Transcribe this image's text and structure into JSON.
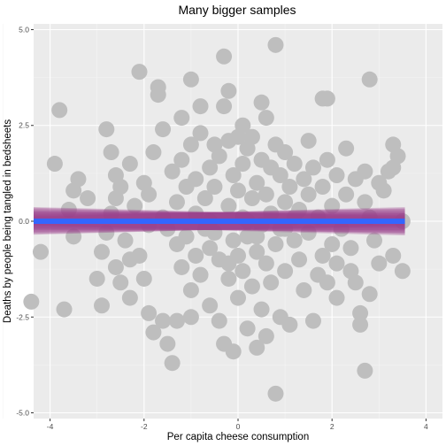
{
  "chart_data": {
    "type": "scatter",
    "title": "Many bigger samples",
    "xlabel": "Per capita cheese consumption",
    "ylabel": "Deaths by people being tangled in bedsheets",
    "xlim": [
      -4.35,
      4.35
    ],
    "ylim": [
      -5.15,
      5.15
    ],
    "x_ticks": [
      -4,
      -2,
      0,
      2,
      4
    ],
    "y_ticks": [
      -5.0,
      -2.5,
      0.0,
      2.5,
      5.0
    ],
    "y_tick_labels": [
      "-5.0",
      "-2.5",
      "0.0",
      "2.5",
      "5.0"
    ],
    "x_tick_labels": [
      "-4",
      "-2",
      "0",
      "2",
      "4"
    ],
    "grid": true,
    "colors": {
      "panel": "#ebebeb",
      "grid_major": "#ffffff",
      "points": "#bebebe",
      "ribbons": "#9b3f8c",
      "line": "#3366ff"
    },
    "points": [
      [
        -3.8,
        2.9
      ],
      [
        -4.4,
        -2.1
      ],
      [
        -4.2,
        -0.8
      ],
      [
        -3.7,
        -2.3
      ],
      [
        -3.9,
        1.5
      ],
      [
        -3.4,
        1.1
      ],
      [
        -3.5,
        0.8
      ],
      [
        -3.6,
        0.3
      ],
      [
        -3.5,
        -0.4
      ],
      [
        -3.2,
        0.6
      ],
      [
        -2.9,
        -2.2
      ],
      [
        -2.8,
        2.4
      ],
      [
        -2.7,
        1.8
      ],
      [
        -2.6,
        1.2
      ],
      [
        -2.5,
        0.9
      ],
      [
        -2.6,
        0.6
      ],
      [
        -2.7,
        0.2
      ],
      [
        -2.8,
        -0.3
      ],
      [
        -2.9,
        -0.8
      ],
      [
        -2.6,
        -1.2
      ],
      [
        -2.5,
        -1.6
      ],
      [
        -2.4,
        -0.5
      ],
      [
        -2.3,
        1.5
      ],
      [
        -2.2,
        0.4
      ],
      [
        -2.1,
        -0.9
      ],
      [
        -2.0,
        1.0
      ],
      [
        -2.0,
        -1.5
      ],
      [
        -1.9,
        0.7
      ],
      [
        -1.9,
        -0.1
      ],
      [
        -1.8,
        1.8
      ],
      [
        -2.1,
        3.9
      ],
      [
        -1.9,
        -2.4
      ],
      [
        -1.8,
        -2.9
      ],
      [
        -1.7,
        3.5
      ],
      [
        -1.7,
        3.3
      ],
      [
        -1.6,
        2.4
      ],
      [
        -1.6,
        -2.6
      ],
      [
        -1.5,
        -3.2
      ],
      [
        -1.4,
        -3.7
      ],
      [
        -1.3,
        -2.6
      ],
      [
        -1.4,
        1.3
      ],
      [
        -1.3,
        0.5
      ],
      [
        -1.3,
        -0.6
      ],
      [
        -1.2,
        1.6
      ],
      [
        -1.2,
        -1.2
      ],
      [
        -1.1,
        0.9
      ],
      [
        -1.1,
        -0.4
      ],
      [
        -1.0,
        3.7
      ],
      [
        -1.0,
        2.0
      ],
      [
        -1.0,
        -1.8
      ],
      [
        -0.9,
        1.1
      ],
      [
        -0.9,
        0.2
      ],
      [
        -0.9,
        -0.9
      ],
      [
        -0.8,
        2.3
      ],
      [
        -0.8,
        -1.4
      ],
      [
        -0.7,
        0.6
      ],
      [
        -0.7,
        -0.2
      ],
      [
        -0.6,
        1.4
      ],
      [
        -0.6,
        -2.2
      ],
      [
        -0.6,
        -0.7
      ],
      [
        -0.5,
        2.0
      ],
      [
        -0.5,
        0.9
      ],
      [
        -0.5,
        -0.3
      ],
      [
        -0.4,
        1.7
      ],
      [
        -0.4,
        -1.0
      ],
      [
        -0.4,
        -2.6
      ],
      [
        -0.3,
        4.3
      ],
      [
        -0.3,
        3.0
      ],
      [
        -0.3,
        -3.2
      ],
      [
        -0.2,
        3.4
      ],
      [
        -0.2,
        2.1
      ],
      [
        -0.2,
        0.4
      ],
      [
        -0.2,
        -1.5
      ],
      [
        -0.1,
        1.2
      ],
      [
        -0.1,
        -0.5
      ],
      [
        -0.1,
        -3.4
      ],
      [
        0.0,
        2.2
      ],
      [
        0.0,
        0.8
      ],
      [
        0.0,
        -0.9
      ],
      [
        0.0,
        -2.0
      ],
      [
        0.1,
        2.5
      ],
      [
        0.1,
        1.5
      ],
      [
        0.1,
        0.1
      ],
      [
        0.1,
        -1.3
      ],
      [
        0.2,
        1.9
      ],
      [
        0.2,
        -0.4
      ],
      [
        0.2,
        -2.8
      ],
      [
        0.3,
        2.2
      ],
      [
        0.3,
        0.6
      ],
      [
        0.3,
        -1.7
      ],
      [
        0.4,
        -3.3
      ],
      [
        0.4,
        1.0
      ],
      [
        0.4,
        -0.8
      ],
      [
        0.5,
        3.1
      ],
      [
        0.5,
        1.6
      ],
      [
        0.5,
        -0.1
      ],
      [
        0.5,
        -2.3
      ],
      [
        0.6,
        0.7
      ],
      [
        0.6,
        -1.1
      ],
      [
        0.6,
        -3.0
      ],
      [
        0.7,
        1.4
      ],
      [
        0.7,
        0.2
      ],
      [
        0.7,
        -1.6
      ],
      [
        0.8,
        4.6
      ],
      [
        0.8,
        2.0
      ],
      [
        0.8,
        -0.6
      ],
      [
        0.8,
        -4.5
      ],
      [
        0.9,
        1.2
      ],
      [
        0.9,
        -0.2
      ],
      [
        0.9,
        -2.5
      ],
      [
        1.0,
        1.8
      ],
      [
        1.0,
        0.5
      ],
      [
        1.0,
        -1.3
      ],
      [
        1.1,
        -2.7
      ],
      [
        1.1,
        0.9
      ],
      [
        1.2,
        1.5
      ],
      [
        1.2,
        -0.5
      ],
      [
        1.3,
        0.3
      ],
      [
        1.3,
        -1.0
      ],
      [
        1.4,
        1.1
      ],
      [
        1.4,
        -1.8
      ],
      [
        1.5,
        0.7
      ],
      [
        1.5,
        -0.3
      ],
      [
        1.6,
        -2.6
      ],
      [
        1.6,
        1.4
      ],
      [
        1.7,
        -1.4
      ],
      [
        1.7,
        0.1
      ],
      [
        1.8,
        3.2
      ],
      [
        1.8,
        0.9
      ],
      [
        1.8,
        -0.9
      ],
      [
        1.9,
        3.2
      ],
      [
        1.9,
        1.6
      ],
      [
        1.9,
        -1.6
      ],
      [
        2.0,
        0.4
      ],
      [
        2.0,
        -0.6
      ],
      [
        2.1,
        1.2
      ],
      [
        2.1,
        -1.1
      ],
      [
        2.2,
        -0.2
      ],
      [
        2.3,
        1.9
      ],
      [
        2.3,
        0.7
      ],
      [
        2.4,
        -1.3
      ],
      [
        2.4,
        -0.7
      ],
      [
        2.5,
        1.1
      ],
      [
        2.5,
        -1.6
      ],
      [
        2.6,
        -2.4
      ],
      [
        2.6,
        -2.7
      ],
      [
        2.7,
        1.3
      ],
      [
        2.7,
        0.5
      ],
      [
        2.7,
        -3.9
      ],
      [
        2.8,
        3.7
      ],
      [
        2.8,
        0.1
      ],
      [
        2.9,
        -0.5
      ],
      [
        3.0,
        1.0
      ],
      [
        3.0,
        -1.1
      ],
      [
        3.1,
        0.8
      ],
      [
        3.2,
        1.3
      ],
      [
        3.3,
        2.0
      ],
      [
        3.3,
        -0.9
      ],
      [
        3.4,
        1.7
      ],
      [
        3.5,
        -1.3
      ],
      [
        3.5,
        0.0
      ],
      [
        -1.5,
        -0.2
      ],
      [
        -1.0,
        -2.5
      ],
      [
        -0.2,
        -1.1
      ],
      [
        0.4,
        -0.4
      ],
      [
        1.2,
        0.1
      ],
      [
        -3.0,
        -1.5
      ],
      [
        -2.3,
        -2.0
      ],
      [
        2.1,
        -2.0
      ],
      [
        1.5,
        2.1
      ],
      [
        -0.8,
        3.0
      ],
      [
        -1.2,
        2.7
      ],
      [
        0.6,
        2.7
      ],
      [
        -0.6,
        0.0
      ],
      [
        0.2,
        0.0
      ],
      [
        1.0,
        -0.2
      ],
      [
        -1.6,
        0.1
      ],
      [
        -2.3,
        -1.0
      ],
      [
        2.8,
        -1.9
      ],
      [
        3.3,
        1.4
      ]
    ],
    "ribbon_lines": [
      [
        -4.35,
        0.12,
        3.55,
        -0.14
      ],
      [
        -4.35,
        -0.1,
        3.55,
        0.11
      ],
      [
        -4.35,
        0.05,
        3.55,
        -0.06
      ],
      [
        -4.35,
        -0.04,
        3.55,
        0.05
      ],
      [
        -4.35,
        0.09,
        3.55,
        -0.08
      ],
      [
        -4.35,
        -0.07,
        3.55,
        0.09
      ],
      [
        -4.35,
        0.02,
        3.55,
        -0.02
      ],
      [
        -4.35,
        -0.12,
        3.55,
        0.14
      ],
      [
        -4.35,
        0.14,
        3.55,
        -0.11
      ],
      [
        -4.35,
        0.0,
        3.55,
        0.0
      ]
    ],
    "fit_line": [
      -4.35,
      0.0,
      3.55,
      0.0
    ]
  }
}
